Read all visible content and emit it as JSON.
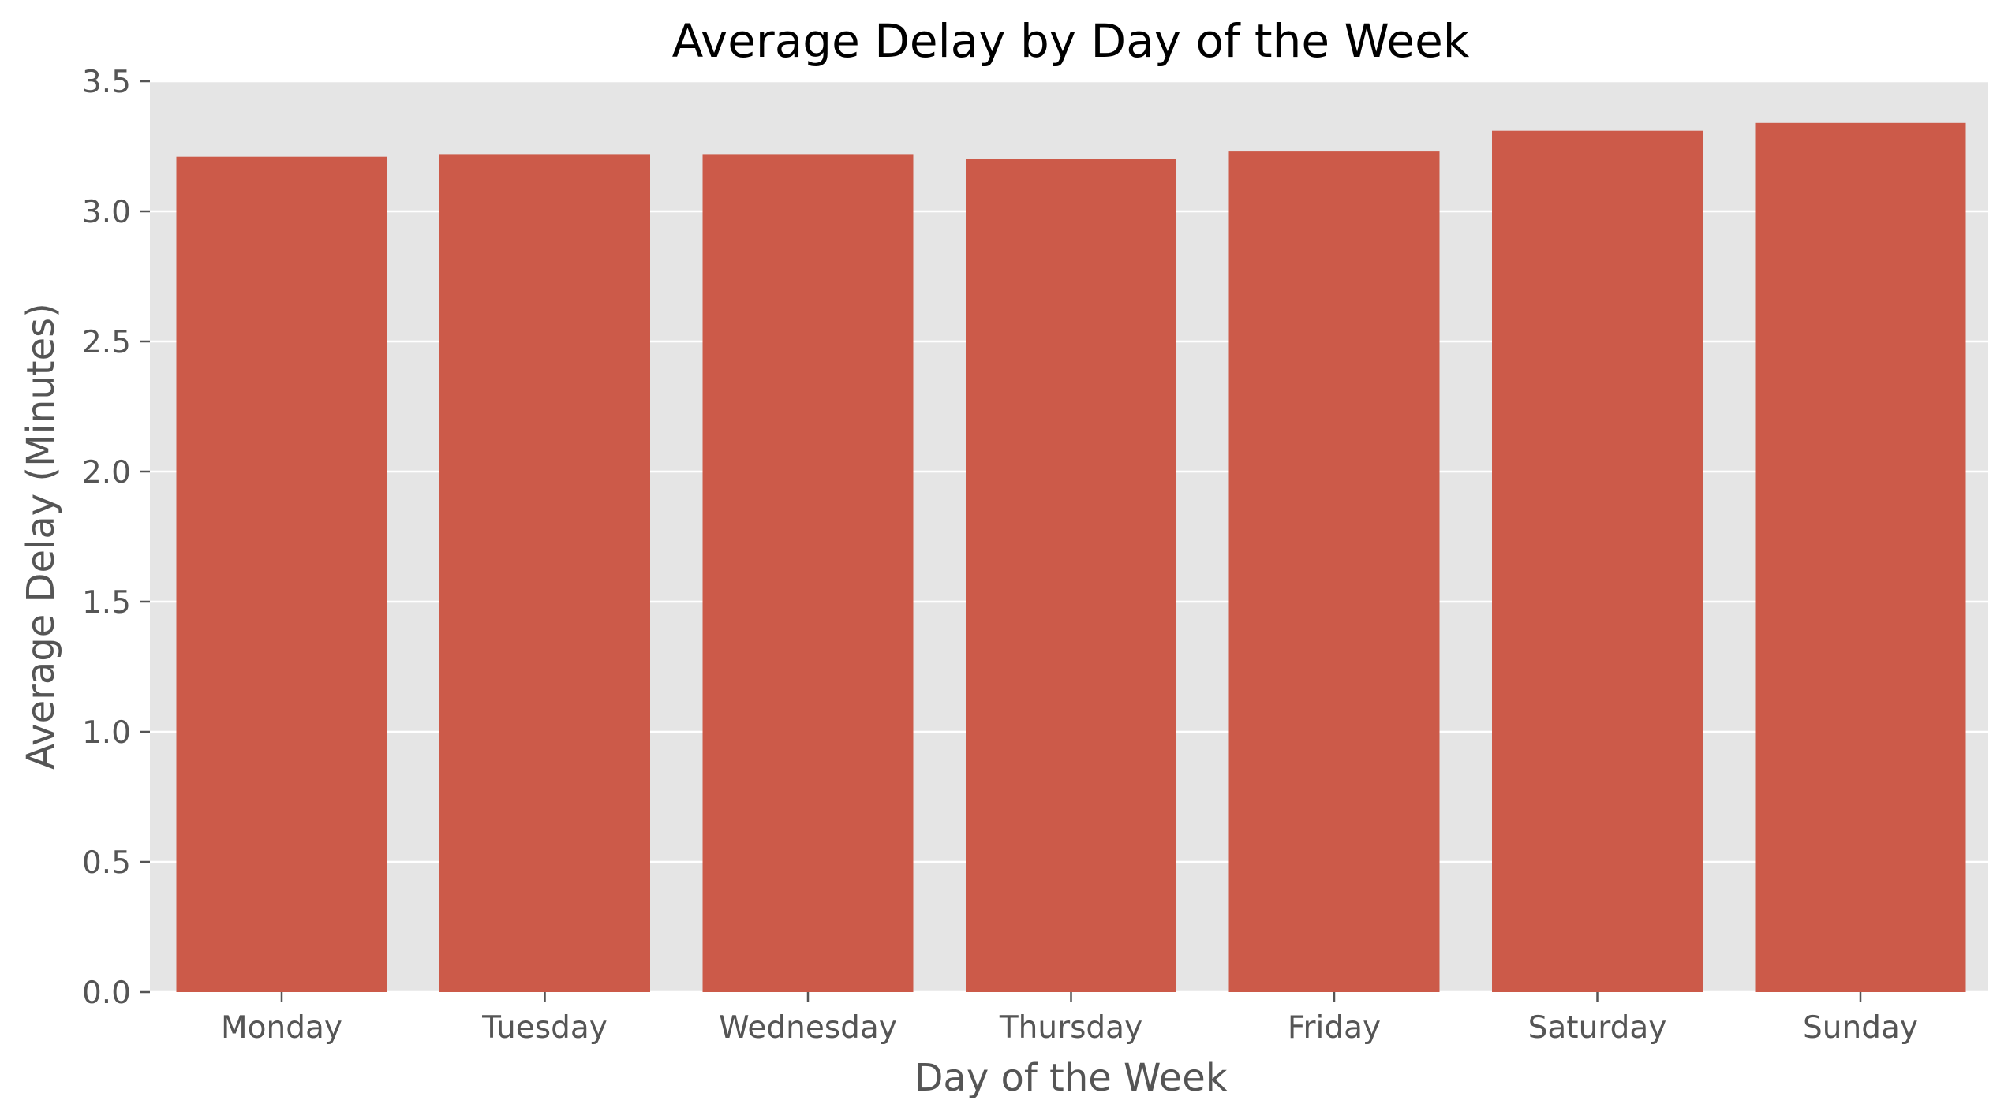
{
  "chart_data": {
    "type": "bar",
    "title": "Average Delay by Day of the Week",
    "xlabel": "Day of the Week",
    "ylabel": "Average Delay (Minutes)",
    "categories": [
      "Monday",
      "Tuesday",
      "Wednesday",
      "Thursday",
      "Friday",
      "Saturday",
      "Sunday"
    ],
    "values": [
      3.21,
      3.22,
      3.22,
      3.2,
      3.23,
      3.31,
      3.34
    ],
    "ylim": [
      0,
      3.5
    ],
    "yticks": [
      0.0,
      0.5,
      1.0,
      1.5,
      2.0,
      2.5,
      3.0,
      3.5
    ],
    "ytick_labels": [
      "0.0",
      "0.5",
      "1.0",
      "1.5",
      "2.0",
      "2.5",
      "3.0",
      "3.5"
    ],
    "grid": true,
    "legend": "none",
    "colors": {
      "bar": "#CC5A49",
      "plot_background": "#E5E5E5",
      "grid": "#FFFFFF",
      "text": "#555555",
      "title": "#000000"
    }
  }
}
